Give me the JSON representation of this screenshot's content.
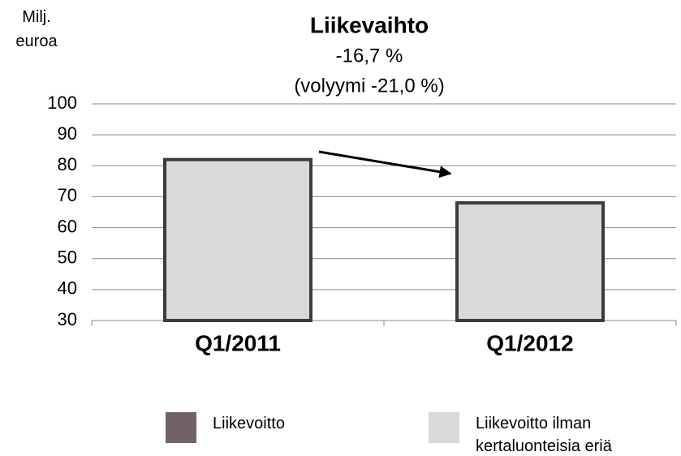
{
  "chart_data": {
    "type": "bar",
    "title": "Liikevaihto",
    "subtitle": "-16,7 %",
    "annotations": [
      "(volyymi -21,0 %)"
    ],
    "y_label": "Milj. euroa",
    "categories": [
      "Q1/2011",
      "Q1/2012"
    ],
    "series": [
      {
        "name": "Liikevoitto",
        "color": "#706266",
        "values": [
          null,
          null
        ]
      },
      {
        "name": "Liikevoitto ilman kertaluonteisia eriä",
        "color": "#d9d9d9",
        "values": [
          82,
          68
        ]
      }
    ],
    "ylim": [
      30,
      100
    ],
    "yticks": [
      30,
      40,
      50,
      60,
      70,
      80,
      90,
      100
    ],
    "grid": true
  }
}
